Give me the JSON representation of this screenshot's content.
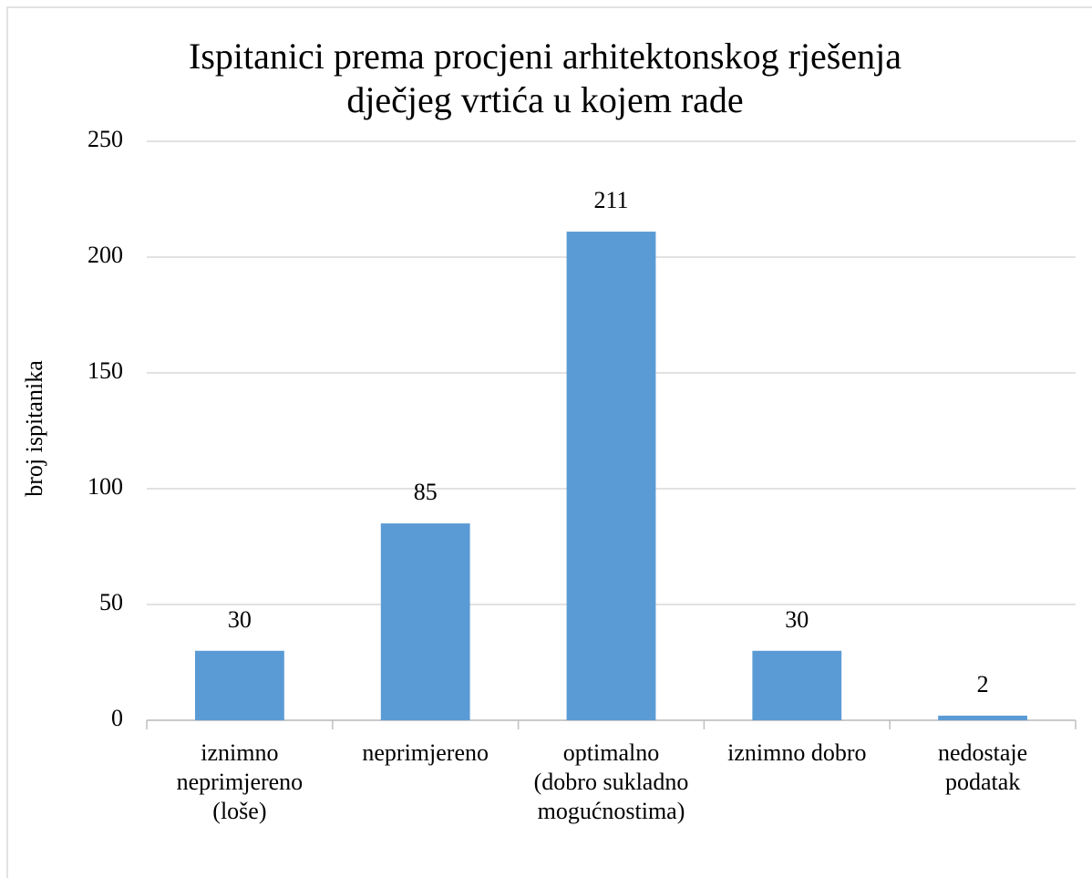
{
  "chart_data": {
    "type": "bar",
    "title": "Ispitanici prema procjeni arhitektonskog rješenja dječjeg vrtića u kojem rade",
    "y_label": "broj ispitanika",
    "categories": [
      "iznimno neprimjereno (loše)",
      "neprimjereno",
      "optimalno (dobro sukladno mogućnostima)",
      "iznimno dobro",
      "nedostaje podatak"
    ],
    "values": [
      30,
      85,
      211,
      30,
      2
    ],
    "color": "#5b9bd5",
    "ylim": [
      0,
      250
    ],
    "yticks": [
      0,
      50,
      100,
      150,
      200,
      250
    ],
    "grid": true
  }
}
